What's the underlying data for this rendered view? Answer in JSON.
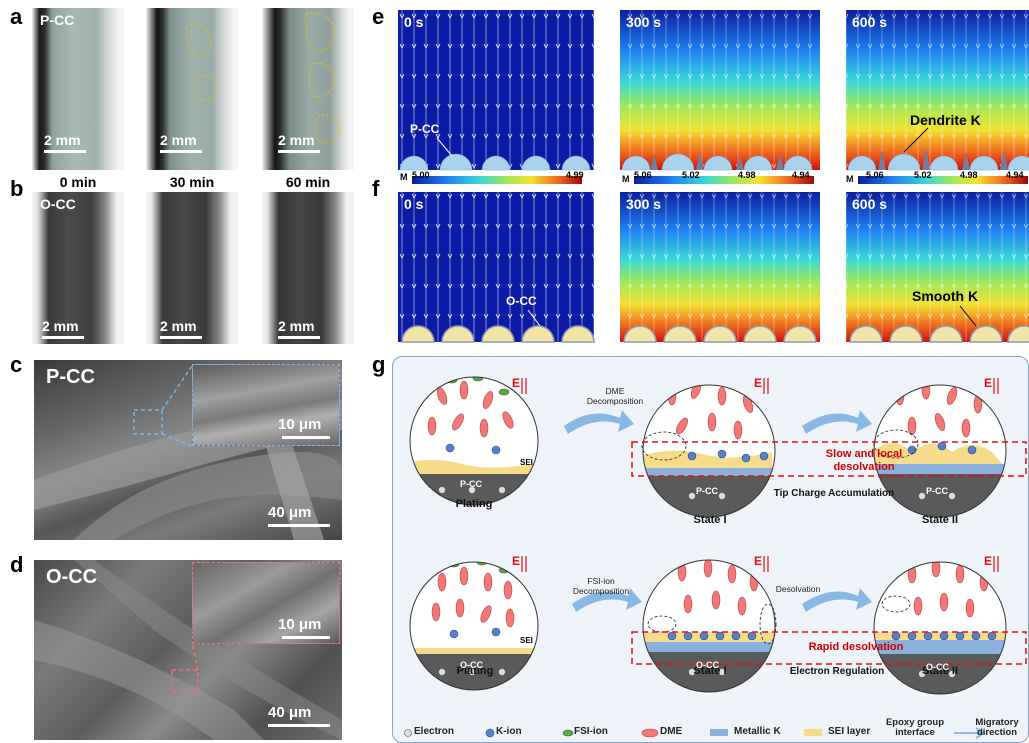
{
  "panels": {
    "a": "a",
    "b": "b",
    "c": "c",
    "d": "d",
    "e": "e",
    "f": "f",
    "g": "g"
  },
  "optical": {
    "row_a_label": "P-CC",
    "row_b_label": "O-CC",
    "scale_text": "2 mm",
    "times": [
      "0 min",
      "30 min",
      "60 min"
    ]
  },
  "sem": {
    "c_label": "P-CC",
    "d_label": "O-CC",
    "inset_scale": "10 μm",
    "main_scale": "40 μm"
  },
  "simulation": {
    "times": [
      "0 s",
      "300 s",
      "600 s"
    ],
    "colorbar_prefix": "M",
    "colorbar_first": [
      "5.00",
      "4.99"
    ],
    "colorbar_other": [
      "5.06",
      "5.02",
      "4.98",
      "4.94"
    ],
    "e_substrate": "P-CC",
    "f_substrate": "O-CC",
    "e_annotation": "Dendrite K",
    "f_annotation": "Smooth K"
  },
  "schematic": {
    "field": "E",
    "top": {
      "plating": "Plating",
      "state1": "State I",
      "state2": "State II",
      "substrate": "P-CC",
      "sei": "SEI",
      "decomp": "DME Decomposition",
      "red_note": "Slow and local desolvation",
      "process": "Tip Charge Accumulation"
    },
    "bottom": {
      "plating": "Plating",
      "state1": "State I",
      "state2": "State II",
      "substrate": "O-CC",
      "sei": "SEI",
      "decomp": "FSI-ion Decomposition",
      "desolv": "Desolvation",
      "red_note": "Rapid desolvation",
      "process": "Electron Regulation"
    },
    "legend": [
      "Electron",
      "K-ion",
      "FSI-ion",
      "DME",
      "Metallic K",
      "SEI layer",
      "Epoxy group interface",
      "Migratory direction"
    ]
  }
}
